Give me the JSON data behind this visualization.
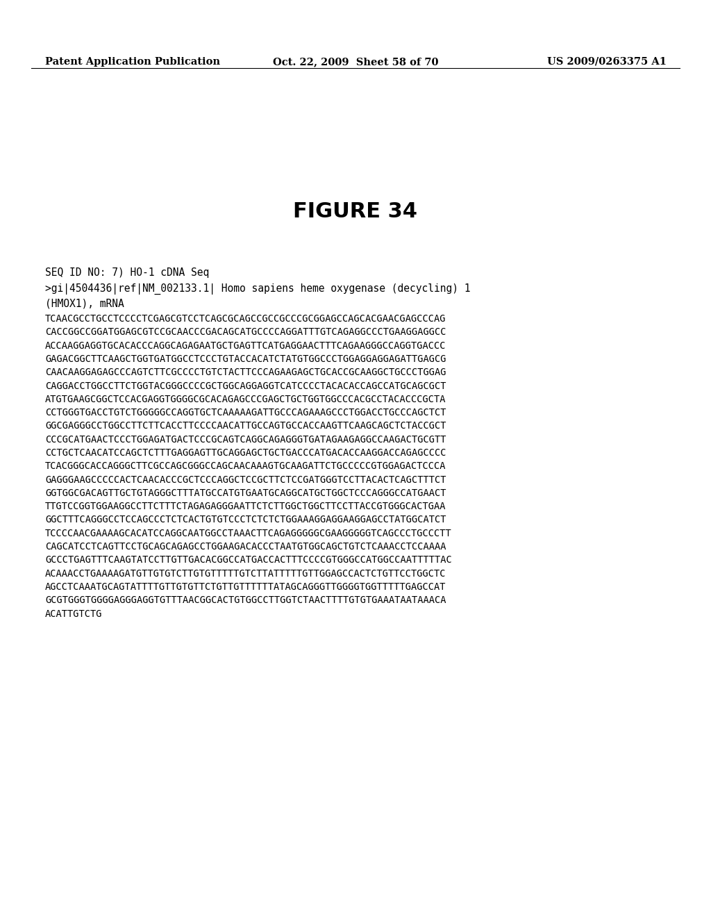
{
  "header_left": "Patent Application Publication",
  "header_mid": "Oct. 22, 2009  Sheet 58 of 70",
  "header_right": "US 2009/0263375 A1",
  "figure_title": "FIGURE 34",
  "seq_label": "SEQ ID NO: 7) HO-1 cDNA Seq",
  "accession_line1": ">gi|4504436|ref|NM_002133.1| Homo sapiens heme oxygenase (decycling) 1",
  "accession_line2": "(HMOX1), mRNA",
  "sequence_lines": [
    "TCAACGCCTGCCTCCCCTCGAGCGTCCTCAGCGCAGCCGCCGCCCGCGGAGCCAGCACGAACGAGCCCAG",
    "CACCGGCCGGATGGAGCGTCCGCAACCCGACAGCATGCCCCAGGATTTGTCAGAGGCCCTGAAGGAGGCC",
    "ACCAAGGAGGTGCACACCCAGGCAGAGAATGCTGAGTTCATGAGGAACTTTCAGAAGGGCCAGGTGACCC",
    "GAGACGGCTTCAAGCTGGTGATGGCCTCCCTGTACCACATCTATGTGGCCCTGGAGGAGGAGATTGAGCG",
    "CAACAAGGAGAGCCCAGTCTTCGCCCCTGTCTACTTCCCAGAAGAGCTGCACCGCAAGGCTGCCCTGGAG",
    "CAGGACCTGGCCTTCTGGTACGGGCCCCGCTGGCAGGAGGTCATCCCCTACACACCAGCCATGCAGCGCT",
    "ATGTGAAGCGGCTCCACGAGGTGGGGCGCACAGAGCCCGAGCTGCTGGTGGCCCACGCCTACACCCGCTA",
    "CCTGGGTGACCTGTCTGGGGGCCAGGTGCTCAAAAAGATTGCCCAGAAAGCCCTGGACCTGCCCAGCTCT",
    "GGCGAGGGCCTGGCCTTCTTCACCTTCCCCAACATTGCCAGTGCCACCAAGTTCAAGCAGCTCTACCGCT",
    "CCCGCATGAACTCCCTGGAGATGACTCCCGCAGTCAGGCAGAGGGTGATAGAAGAGGCCAAGACTGCGTT",
    "CCTGCTCAACATCCAGCTCTTTGAGGAGTTGCAGGAGCTGCTGACCCATGACACCAAGGACCAGAGCCCC",
    "TCACGGGCACCAGGGCTTCGCCAGCGGGCCAGCAACAAAGTGCAAGATTCTGCCCCCGTGGAGACTCCCA",
    "GAGGGAAGCCCCCACTCAACACCCGCTCCCAGGCTCCGCTTCTCCGATGGGTCCTTACACTCAGCTTTCT",
    "GGTGGCGACAGTTGCTGTAGGGCTTTATGCCATGTGAATGCAGGCATGCTGGCTCCCAGGGCCATGAACT",
    "TTGTCCGGTGGAAGGCCTTCTTTCTAGAGAGGGAATTCTCTTGGCTGGCTTCCTTACCGTGGGCACTGAA",
    "GGCTTTCAGGGCCTCCAGCCCTCTCACTGTGTCCCTCTCTCTGGAAAGGAGGAAGGAGCCTATGGCATCT",
    "TCCCCAACGAAAAGCACATCCAGGCAATGGCCTAAACTTCAGAGGGGGCGAAGGGGGTCAGCCCTGCCCTT",
    "CAGCATCCTCAGTTCCTGCAGCAGAGCCTGGAAGACACCCTAATGTGGCAGCTGTCTCAAACCTCCAAAA",
    "GCCCTGAGTTTCAAGTATCCTTGTTGACACGGCCATGACCACTTTCCCCGTGGGCCATGGCCAATTTTTAC",
    "ACAAACCTGAAAAGATGTTGTGTCTTGTGTTTTTGTCTTATTTTTGTTGGAGCCACTCTGTTCCTGGCTC",
    "AGCCTCAAATGCAGTATTTTGTTGTGTTCTGTTGTTTTTTATAGCAGGGTTGGGGTGGTTTTTGAGCCAT",
    "GCGTGGGTGGGGAGGGAGGTGTTTAACGGCACTGTGGCCTTGGTCTAACTTTTGTGTGAAATAATAAACA",
    "ACATTGTCTG"
  ],
  "background_color": "#ffffff",
  "text_color": "#000000",
  "header_fontsize": 10.5,
  "figure_title_fontsize": 22,
  "seq_label_fontsize": 10.5,
  "sequence_fontsize": 9.8
}
